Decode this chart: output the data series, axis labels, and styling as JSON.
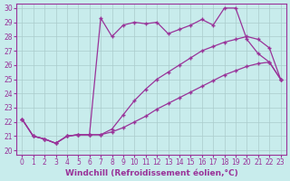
{
  "xlabel": "Windchill (Refroidissement éolien,°C)",
  "bg_color": "#c8ecec",
  "line_color": "#993399",
  "grid_color": "#aacccc",
  "xlim": [
    -0.5,
    23.5
  ],
  "ylim": [
    19.7,
    30.3
  ],
  "yticks": [
    20,
    21,
    22,
    23,
    24,
    25,
    26,
    27,
    28,
    29,
    30
  ],
  "xticks": [
    0,
    1,
    2,
    3,
    4,
    5,
    6,
    7,
    8,
    9,
    10,
    11,
    12,
    13,
    14,
    15,
    16,
    17,
    18,
    19,
    20,
    21,
    22,
    23
  ],
  "line1_x": [
    0,
    1,
    2,
    3,
    4,
    5,
    6,
    7,
    8,
    9,
    10,
    11,
    12,
    13,
    14,
    15,
    16,
    17,
    18,
    19,
    20,
    21,
    22,
    23
  ],
  "line1_y": [
    22.2,
    21.0,
    20.8,
    20.5,
    21.0,
    21.1,
    21.1,
    21.1,
    21.3,
    21.6,
    22.0,
    22.4,
    22.9,
    23.3,
    23.7,
    24.1,
    24.5,
    24.9,
    25.3,
    25.6,
    25.9,
    26.1,
    26.2,
    25.0
  ],
  "line2_x": [
    0,
    1,
    2,
    3,
    4,
    5,
    6,
    7,
    8,
    9,
    10,
    11,
    12,
    13,
    14,
    15,
    16,
    17,
    18,
    19,
    20,
    21,
    22,
    23
  ],
  "line2_y": [
    22.2,
    21.0,
    20.8,
    20.5,
    21.0,
    21.1,
    21.1,
    21.1,
    21.5,
    22.5,
    23.5,
    24.3,
    25.0,
    25.5,
    26.0,
    26.5,
    27.0,
    27.3,
    27.6,
    27.8,
    28.0,
    27.8,
    27.2,
    25.0
  ],
  "line3_x": [
    0,
    1,
    2,
    3,
    4,
    5,
    6,
    7,
    8,
    9,
    10,
    11,
    12,
    13,
    14,
    15,
    16,
    17,
    18,
    19,
    20,
    21,
    22,
    23
  ],
  "line3_y": [
    22.2,
    21.0,
    20.8,
    20.5,
    21.0,
    21.1,
    21.1,
    29.3,
    28.0,
    28.8,
    29.0,
    28.9,
    29.0,
    28.2,
    28.5,
    28.8,
    29.2,
    28.8,
    30.0,
    30.0,
    27.8,
    26.8,
    26.2,
    25.0
  ],
  "marker": "+",
  "markersize": 3.5,
  "linewidth": 0.9,
  "tick_fontsize": 5.5,
  "label_fontsize": 6.5
}
